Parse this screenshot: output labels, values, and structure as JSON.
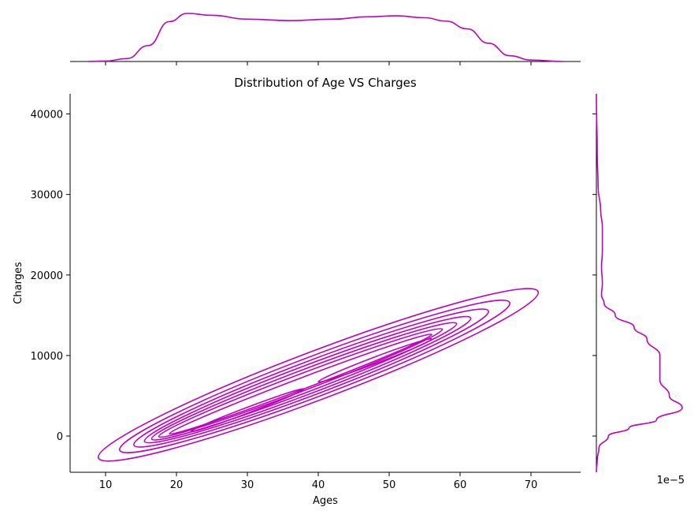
{
  "chart_data": {
    "type": "kde-joint",
    "title": "Distribution of Age VS Charges",
    "xlabel": "Ages",
    "ylabel": "Charges",
    "xlim": [
      5,
      77
    ],
    "ylim": [
      -4500,
      42500
    ],
    "xticks": [
      10,
      20,
      30,
      40,
      50,
      60,
      70
    ],
    "yticks": [
      0,
      10000,
      20000,
      30000,
      40000
    ],
    "xtick_labels": [
      "10",
      "20",
      "30",
      "40",
      "50",
      "60",
      "70"
    ],
    "ytick_labels": [
      "0",
      "10000",
      "20000",
      "30000",
      "40000"
    ],
    "offset_text": "1e−5",
    "color": "#bf00bf",
    "contours": [
      {
        "cx": 40,
        "cy": 7600,
        "rx": 31,
        "ry": 3000
      },
      {
        "cx": 39.5,
        "cy": 7400,
        "rx": 27.5,
        "ry": 2500
      },
      {
        "cx": 39,
        "cy": 7200,
        "rx": 25,
        "ry": 2100
      },
      {
        "cx": 38.5,
        "cy": 7000,
        "rx": 23,
        "ry": 1750
      },
      {
        "cx": 38,
        "cy": 6800,
        "rx": 21.5,
        "ry": 1400
      },
      {
        "cx": 37.5,
        "cy": 6600,
        "rx": 20,
        "ry": 1050
      },
      {
        "cx": 37.5,
        "cy": 6450,
        "rx": 18.5,
        "ry": 700
      },
      {
        "cx": 30,
        "cy": 3200,
        "rx": 8,
        "ry": 350
      },
      {
        "cx": 48,
        "cy": 9400,
        "rx": 8,
        "ry": 400
      }
    ],
    "marginal_x_density": [
      [
        7.5,
        0.0
      ],
      [
        10,
        0.01
      ],
      [
        13,
        0.06
      ],
      [
        16,
        0.33
      ],
      [
        19,
        0.83
      ],
      [
        21.5,
        1.0
      ],
      [
        25,
        0.96
      ],
      [
        30,
        0.88
      ],
      [
        36,
        0.85
      ],
      [
        42,
        0.88
      ],
      [
        47,
        0.93
      ],
      [
        51,
        0.95
      ],
      [
        55,
        0.91
      ],
      [
        58,
        0.84
      ],
      [
        61,
        0.68
      ],
      [
        64,
        0.38
      ],
      [
        67,
        0.12
      ],
      [
        70,
        0.03
      ],
      [
        74.5,
        0.0
      ]
    ],
    "marginal_y_density": [
      [
        -4500,
        0.0
      ],
      [
        -3000,
        0.01
      ],
      [
        -1500,
        0.03
      ],
      [
        0,
        0.14
      ],
      [
        1000,
        0.38
      ],
      [
        2000,
        0.7
      ],
      [
        3500,
        1.0
      ],
      [
        5000,
        0.85
      ],
      [
        7000,
        0.74
      ],
      [
        10000,
        0.74
      ],
      [
        12000,
        0.59
      ],
      [
        13500,
        0.44
      ],
      [
        15000,
        0.22
      ],
      [
        16500,
        0.09
      ],
      [
        17500,
        0.06
      ],
      [
        19000,
        0.07
      ],
      [
        21000,
        0.06
      ],
      [
        23000,
        0.07
      ],
      [
        26000,
        0.07
      ],
      [
        28000,
        0.05
      ],
      [
        31000,
        0.02
      ],
      [
        35000,
        0.01
      ],
      [
        42500,
        0.0
      ]
    ]
  }
}
